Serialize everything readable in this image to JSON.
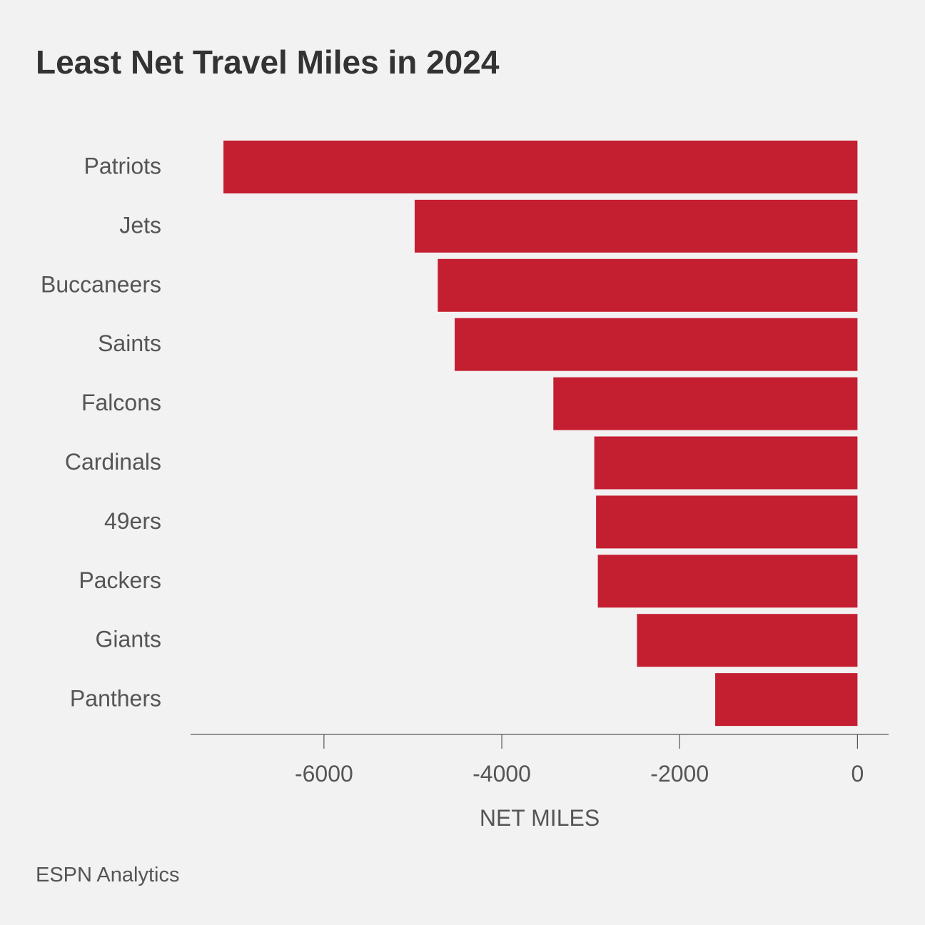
{
  "chart_data": {
    "type": "bar",
    "orientation": "horizontal",
    "title": "Least Net Travel Miles in 2024",
    "categories": [
      "Patriots",
      "Jets",
      "Buccaneers",
      "Saints",
      "Falcons",
      "Cardinals",
      "49ers",
      "Packers",
      "Giants",
      "Panthers"
    ],
    "values": [
      -7130,
      -4980,
      -4720,
      -4530,
      -3420,
      -2960,
      -2940,
      -2920,
      -2480,
      -1600
    ],
    "xlabel": "NET MILES",
    "xlim": [
      -7500,
      350
    ],
    "xticks": [
      -6000,
      -4000,
      -2000,
      0
    ],
    "xtick_labels": [
      "-6000",
      "-4000",
      "-2000",
      "0"
    ],
    "grid": false,
    "bar_color": "#c41e31",
    "source": "ESPN Analytics"
  }
}
